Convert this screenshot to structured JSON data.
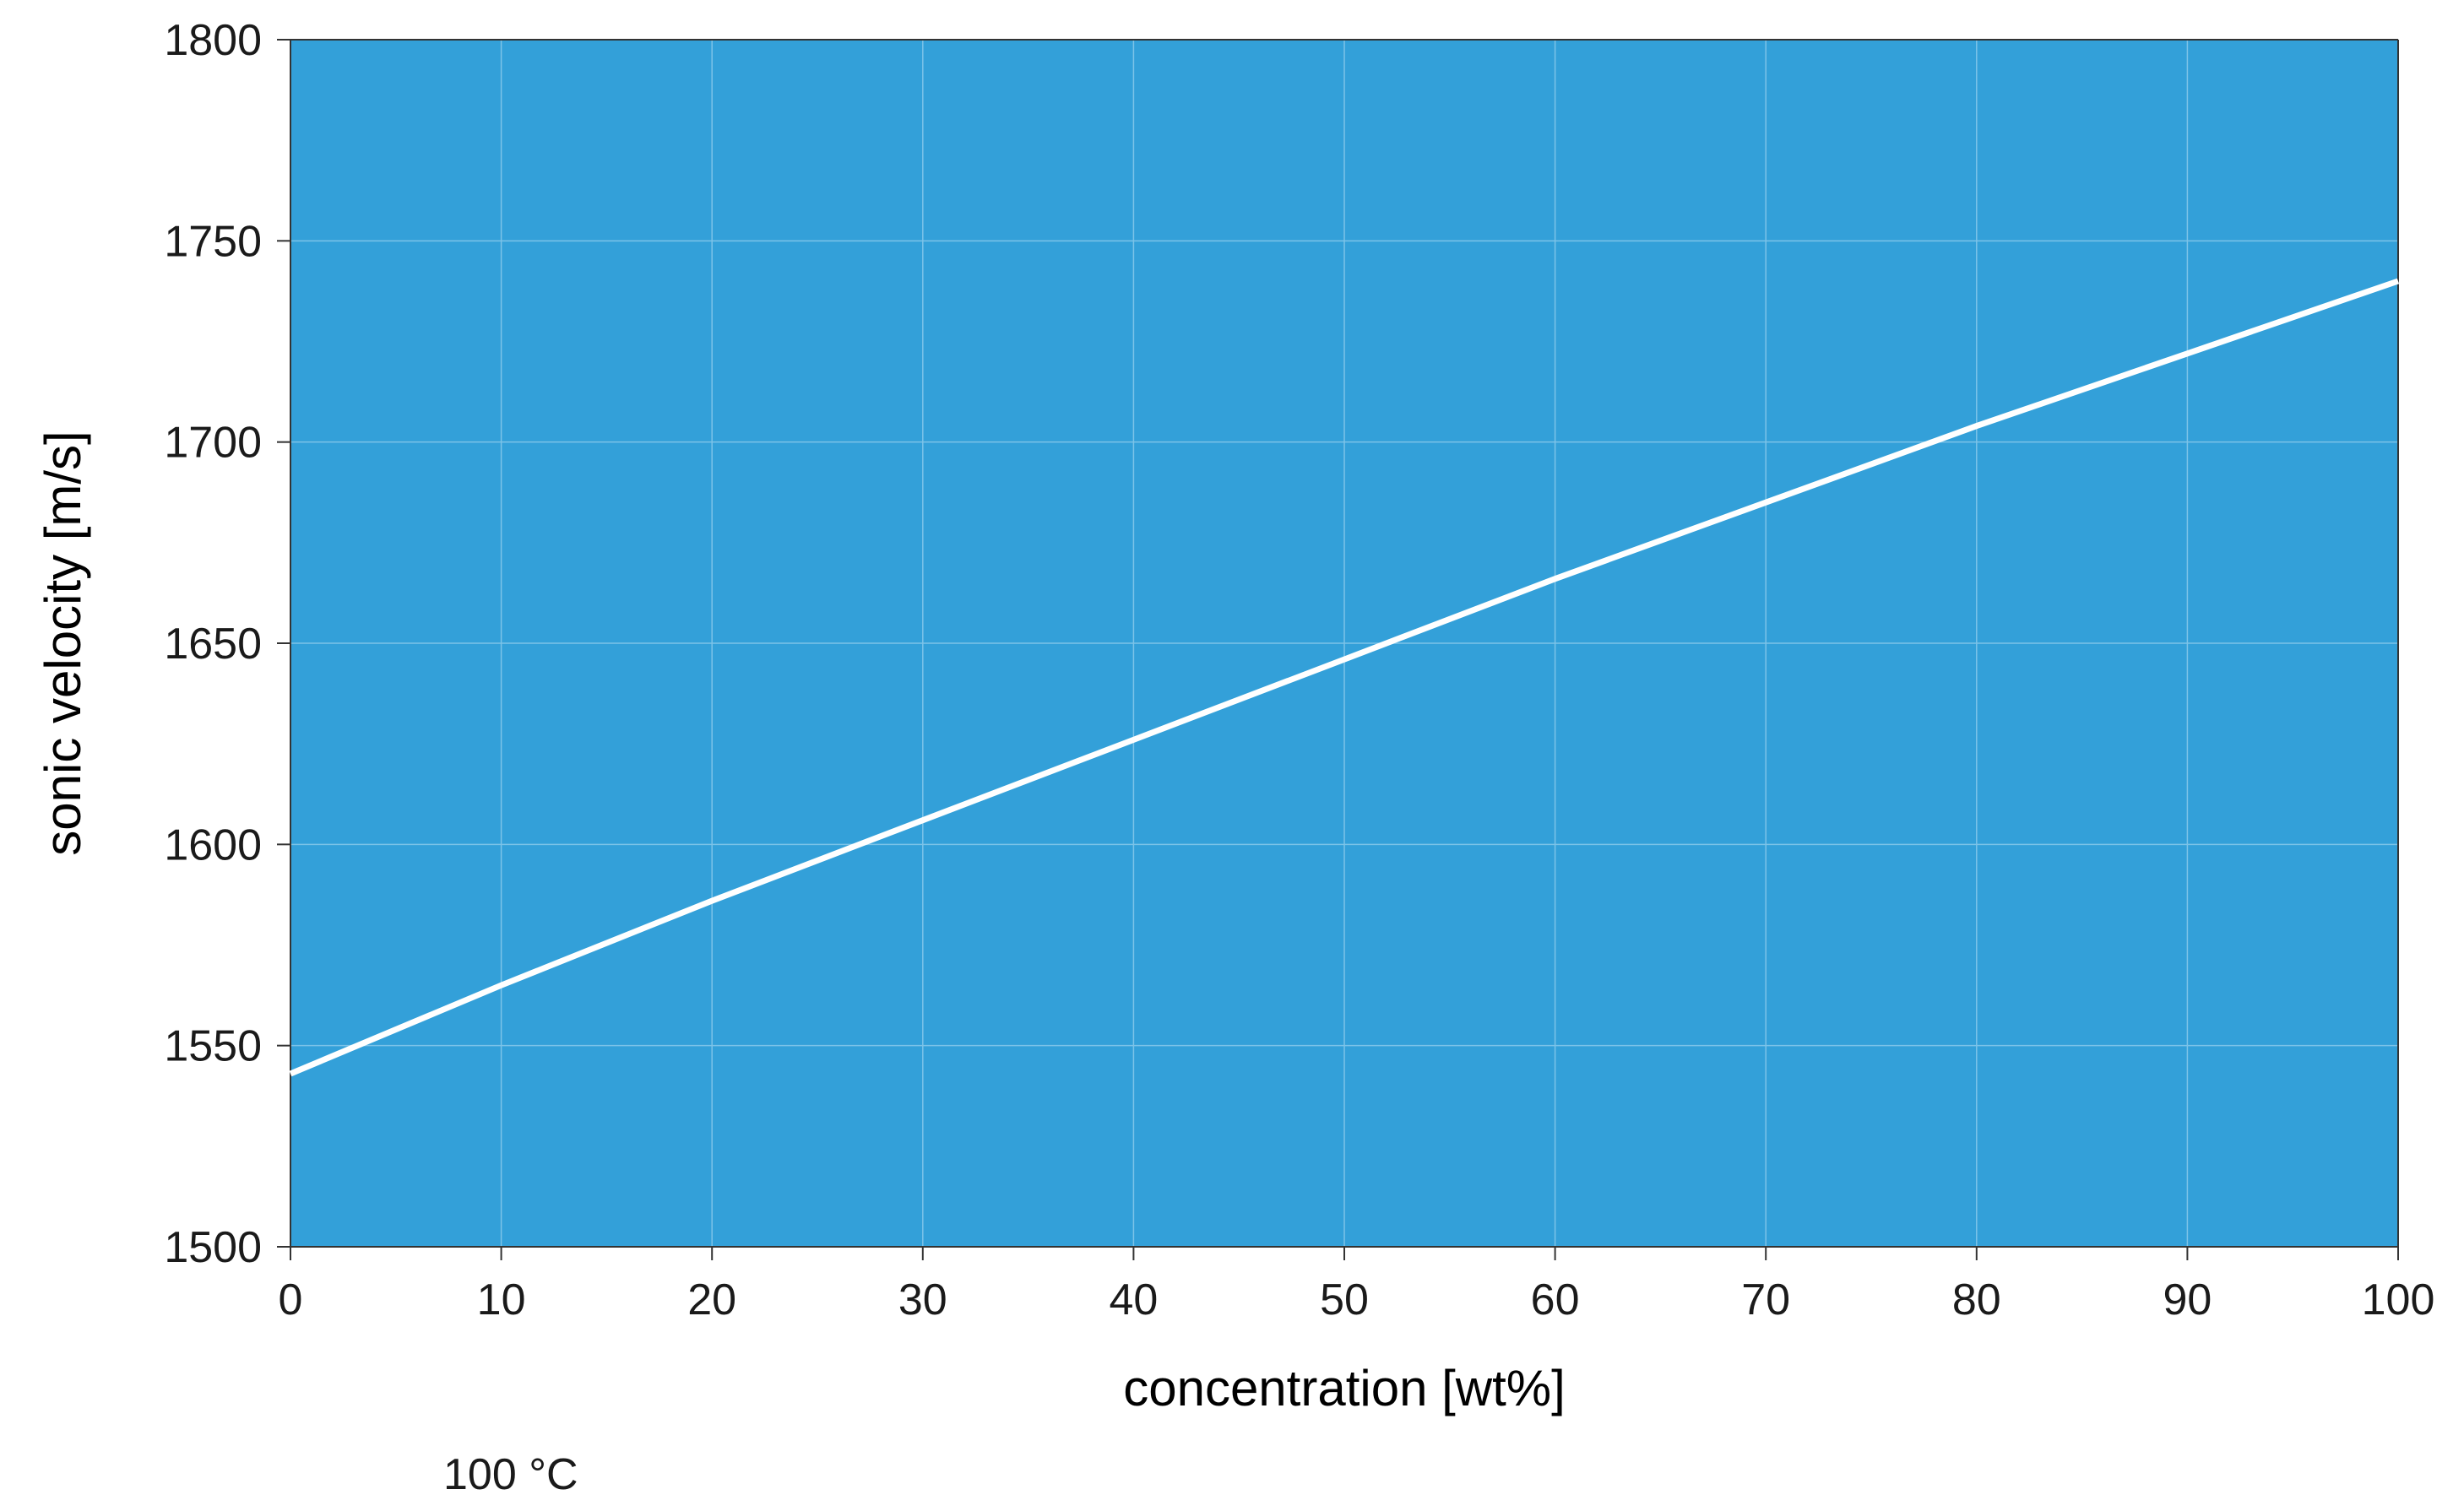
{
  "chart_data": {
    "type": "line",
    "title": "",
    "xlabel": "concentration [wt%]",
    "ylabel": "sonic velocity [m/s]",
    "xlim": [
      0,
      100
    ],
    "ylim": [
      1500,
      1800
    ],
    "xticks": [
      0,
      10,
      20,
      30,
      40,
      50,
      60,
      70,
      80,
      90,
      100
    ],
    "yticks": [
      1500,
      1550,
      1600,
      1650,
      1700,
      1750,
      1800
    ],
    "grid": true,
    "legend": "none",
    "series": [
      {
        "x": [
          0,
          10,
          20,
          30,
          40,
          50,
          60,
          70,
          80,
          90,
          100
        ],
        "y": [
          1543,
          1565,
          1586,
          1606,
          1626,
          1646,
          1666,
          1685,
          1704,
          1722,
          1740
        ],
        "color": "#ffffff"
      }
    ],
    "annotation": "100 °C"
  },
  "colors": {
    "plot_background": "#33a0d9",
    "grid": "#7cc3e8",
    "line": "#ffffff",
    "axis": "#333333"
  }
}
